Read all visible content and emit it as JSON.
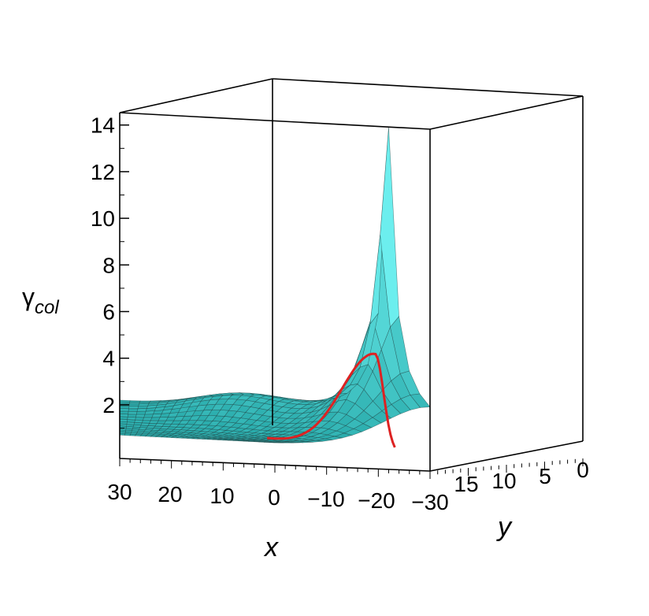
{
  "chart_data": {
    "type": "surface3d",
    "title": "",
    "zlabel": {
      "symbol": "γ",
      "subscript": "col"
    },
    "xlabel": "x",
    "ylabel": "y",
    "xlim": [
      30,
      -30
    ],
    "ylim": [
      20,
      0
    ],
    "zlim": [
      0,
      15
    ],
    "x_ticks": [
      "30",
      "20",
      "10",
      "0",
      "−10",
      "−20",
      "−30"
    ],
    "y_ticks": [
      "15",
      "10",
      "5",
      "0"
    ],
    "z_ticks": [
      "2",
      "4",
      "6",
      "8",
      "10",
      "12",
      "14"
    ],
    "surface_color": "#33cccc",
    "highlight_curve_color": "#dd2222",
    "peak": {
      "x": -22,
      "y": 0,
      "z": 14.5
    },
    "ridge_curve_peak": {
      "x": -22,
      "y": 2,
      "z": 4.8
    },
    "baseline_z": 1
  }
}
